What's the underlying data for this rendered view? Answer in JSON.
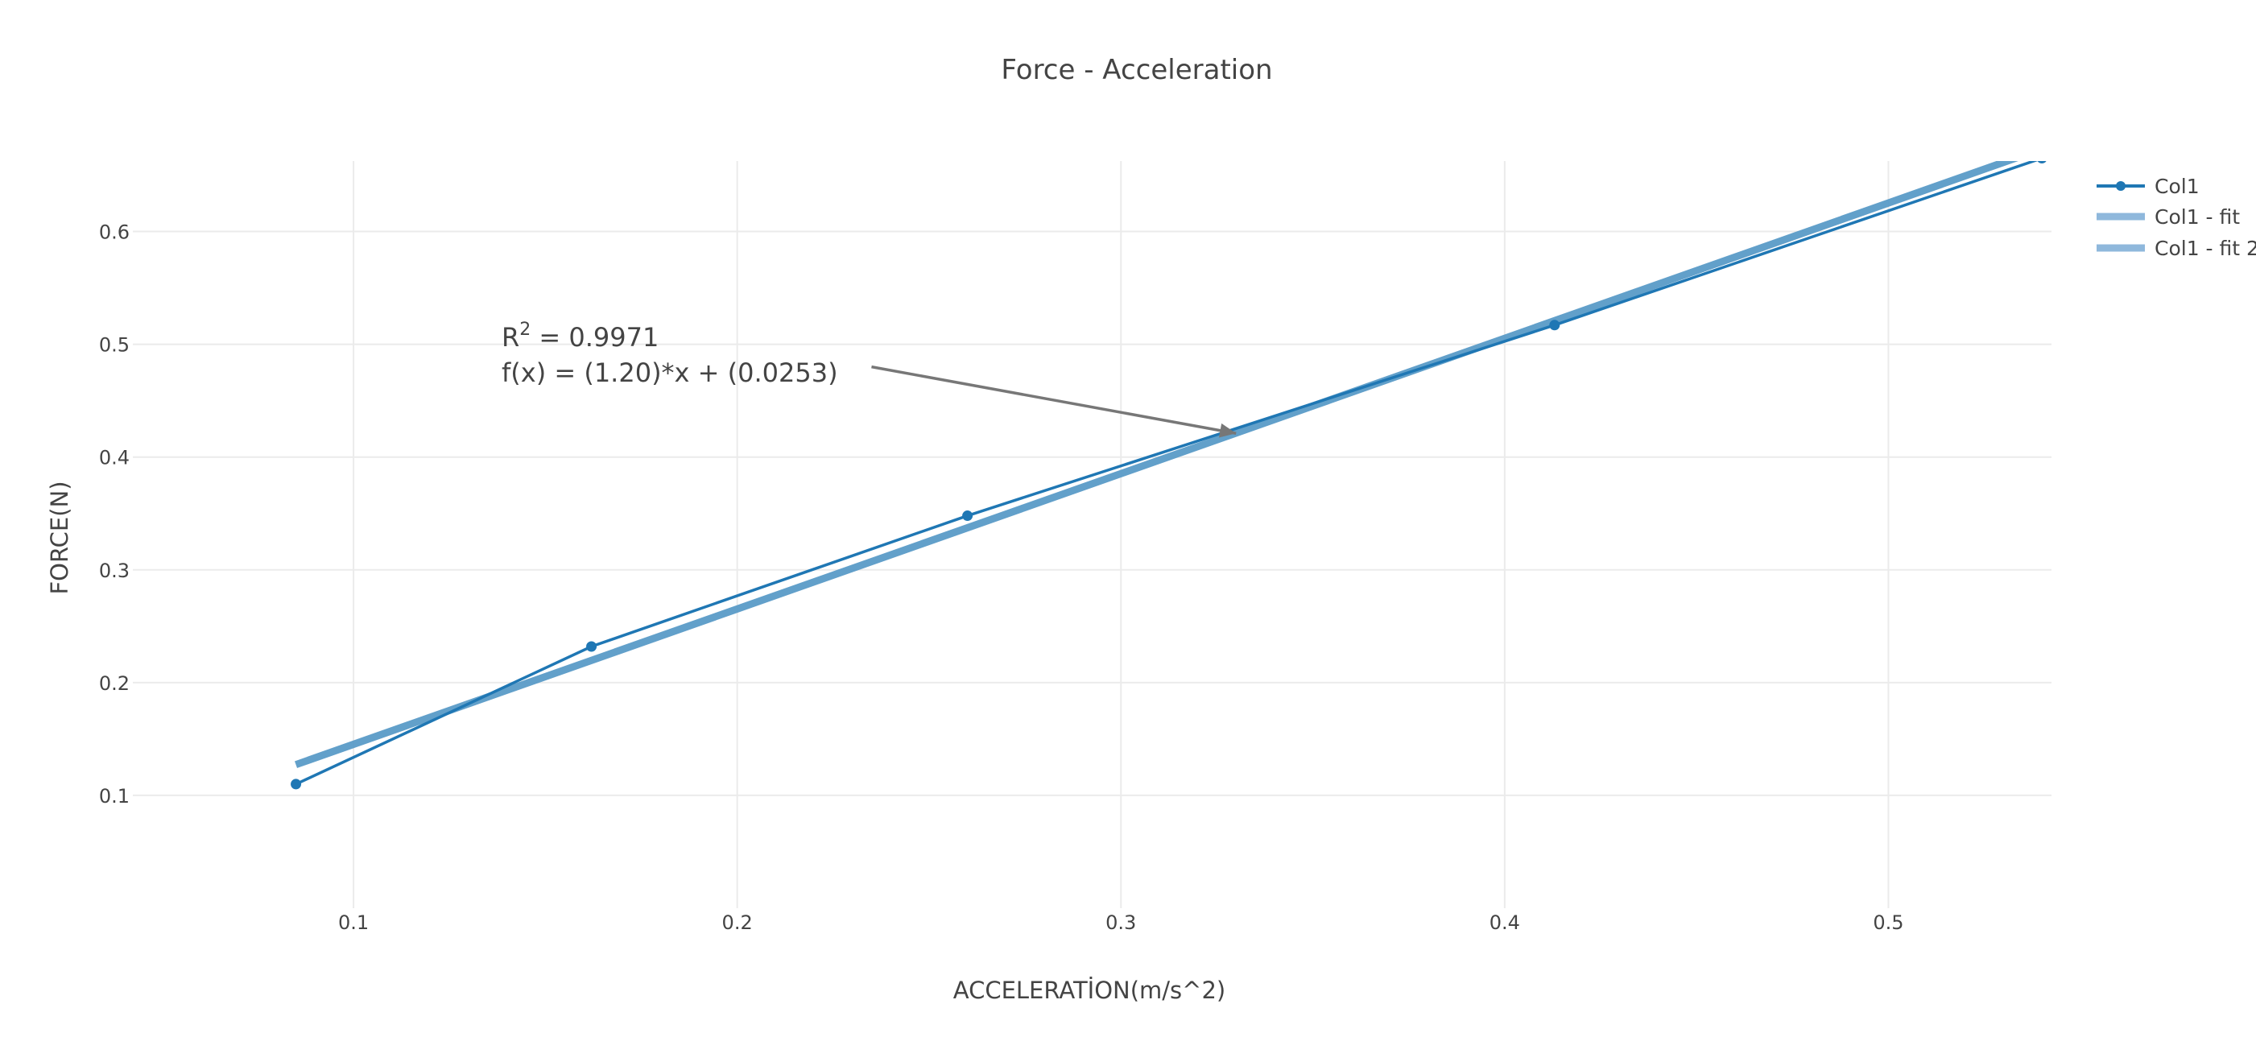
{
  "chart_data": {
    "type": "line",
    "title": "Force - Acceleration",
    "xlabel": "ACCELERATİON(m/s^2)",
    "ylabel": "FORCE(N)",
    "xlim": [
      0.0425,
      0.5425
    ],
    "ylim": [
      0.0,
      0.6625
    ],
    "xticks": [
      0.1,
      0.2,
      0.3,
      0.4,
      0.5
    ],
    "yticks": [
      0.1,
      0.2,
      0.3,
      0.4,
      0.5,
      0.6
    ],
    "grid": true,
    "legend_position": "top-right",
    "colors": {
      "data_line": "#1f77b4",
      "fit_line": "#5b9bc8",
      "legend_fit": "#8fb8dc",
      "annotation": "#777777",
      "grid": "#ebebeb"
    },
    "series": [
      {
        "name": "Col1",
        "mode": "lines+markers",
        "x": [
          0.085,
          0.162,
          0.26,
          0.413,
          0.54
        ],
        "y": [
          0.11,
          0.232,
          0.348,
          0.517,
          0.665
        ]
      },
      {
        "name": "Col1 - fit",
        "mode": "lines",
        "x": [
          0.085,
          0.54
        ],
        "y": [
          0.1273,
          0.6733
        ]
      },
      {
        "name": "Col1 - fit 2",
        "mode": "lines",
        "x": [
          0.085,
          0.54
        ],
        "y": [
          0.1273,
          0.6733
        ]
      }
    ],
    "annotation": {
      "r2_prefix": "R",
      "r2_sup": "2",
      "r2_rest": " = 0.9971",
      "equation": "f(x) = (1.20)*x + (0.0253)",
      "arrow_head_x": 0.33,
      "arrow_head_y": 0.421,
      "arrow_tail_x": 0.235,
      "arrow_tail_y": 0.48
    }
  }
}
